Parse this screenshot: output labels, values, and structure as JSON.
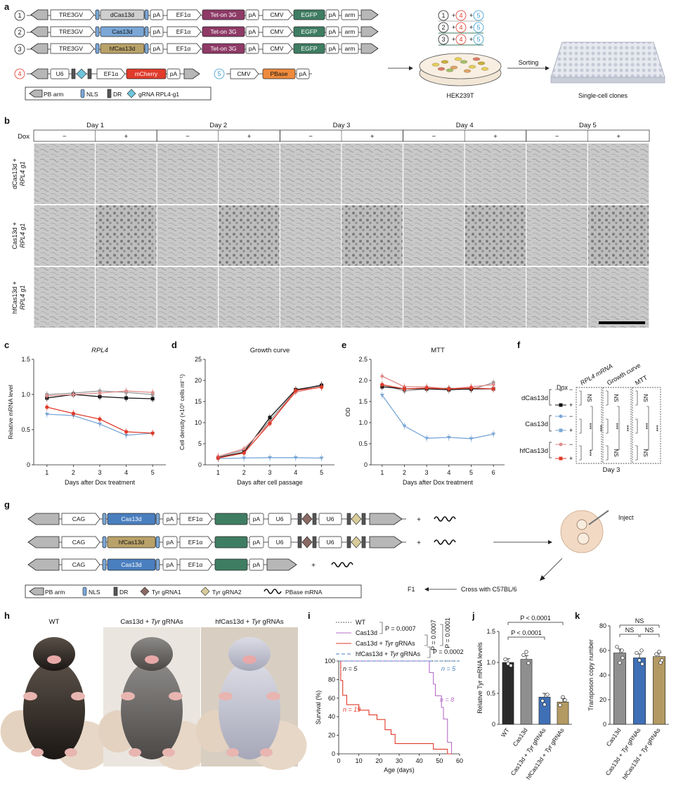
{
  "panels": [
    "a",
    "b",
    "c",
    "d",
    "e",
    "f",
    "g",
    "h",
    "i",
    "j",
    "k"
  ],
  "a": {
    "constructs": [
      {
        "num": "1",
        "elements": [
          "TRE3GV",
          "dCas13d",
          "pA",
          "EF1α",
          "Tet-on 3G",
          "pA",
          "CMV",
          "EGFP",
          "pA",
          "arm"
        ]
      },
      {
        "num": "2",
        "elements": [
          "TRE3GV",
          "Cas13d",
          "pA",
          "EF1α",
          "Tet-on 3G",
          "pA",
          "CMV",
          "EGFP",
          "pA",
          "arm"
        ]
      },
      {
        "num": "3",
        "elements": [
          "TRE3GV",
          "hfCas13d",
          "pA",
          "EF1α",
          "Tet-on 3G",
          "pA",
          "CMV",
          "EGFP",
          "pA",
          "arm"
        ]
      }
    ],
    "construct4": {
      "num": "4",
      "elements": [
        "U6",
        "EF1α",
        "mCherry",
        "pA"
      ]
    },
    "construct5": {
      "num": "5",
      "elements": [
        "CMV",
        "PBase",
        "pA"
      ]
    },
    "legend": [
      "PB arm",
      "NLS",
      "DR",
      "gRNA RPL4-g1"
    ],
    "combos": [
      [
        "1",
        "4",
        "5"
      ],
      [
        "2",
        "4",
        "5"
      ],
      [
        "3",
        "4",
        "5"
      ]
    ],
    "dish_label": "HEK239T",
    "sorting_label": "Sorting",
    "clones_label": "Single-cell clones"
  },
  "b": {
    "days": [
      "Day 1",
      "Day 2",
      "Day 3",
      "Day 4",
      "Day 5"
    ],
    "dox_label": "Dox",
    "minus": "−",
    "plus": "+",
    "rows": [
      "dCas13d + RPL4 g1",
      "Cas13d + RPL4 g1",
      "hfCas13d + RPL4 g1"
    ]
  },
  "c": {
    "chart_data": {
      "type": "line",
      "title": "RPL4",
      "xlabel": "Days after Dox treatment",
      "ylabel": "Relative mRNA level",
      "x": [
        1,
        2,
        3,
        4,
        5
      ],
      "ylim": [
        0,
        1.5
      ],
      "yticks": [
        "0",
        "0.5",
        "1.0",
        "1.5"
      ],
      "series": [
        {
          "color": "#9a9a9a",
          "values": [
            1.0,
            1.02,
            1.05,
            1.03,
            1.0
          ]
        },
        {
          "color": "#111111",
          "values": [
            0.95,
            1.0,
            0.97,
            0.95,
            0.94
          ]
        },
        {
          "color": "#7aa7d6",
          "values": [
            0.72,
            0.7,
            0.58,
            0.42,
            0.45
          ]
        },
        {
          "color": "#e08b8b",
          "values": [
            0.98,
            1.0,
            1.02,
            1.05,
            1.03
          ]
        },
        {
          "color": "#e03b2b",
          "values": [
            0.82,
            0.73,
            0.65,
            0.47,
            0.45
          ]
        }
      ]
    }
  },
  "d": {
    "chart_data": {
      "type": "line",
      "title": "Growth curve",
      "xlabel": "Days after cell passage",
      "ylabel": "Cell density (×10⁵ cells ml⁻¹)",
      "x": [
        1,
        2,
        3,
        4,
        5
      ],
      "ylim": [
        0,
        25
      ],
      "yticks": [
        "0",
        "5",
        "10",
        "15",
        "20",
        "25"
      ],
      "series": [
        {
          "color": "#9a9a9a",
          "values": [
            1.8,
            3.5,
            10.5,
            17.5,
            19.0
          ]
        },
        {
          "color": "#111111",
          "values": [
            1.7,
            3.0,
            11.2,
            17.8,
            18.8
          ]
        },
        {
          "color": "#7aa7d6",
          "values": [
            1.5,
            1.6,
            1.7,
            1.7,
            1.6
          ]
        },
        {
          "color": "#e08b8b",
          "values": [
            2.0,
            3.8,
            10.0,
            17.2,
            18.5
          ]
        },
        {
          "color": "#e03b2b",
          "values": [
            1.6,
            2.8,
            9.8,
            17.6,
            18.4
          ]
        }
      ]
    }
  },
  "e": {
    "chart_data": {
      "type": "line",
      "title": "MTT",
      "xlabel": "Days after Dox treatment",
      "ylabel": "OD",
      "x": [
        1,
        2,
        3,
        4,
        5,
        6
      ],
      "ylim": [
        0,
        2.5
      ],
      "yticks": [
        "0",
        "0.5",
        "1.0",
        "1.5",
        "2.0",
        "2.5"
      ],
      "series": [
        {
          "color": "#9a9a9a",
          "values": [
            1.9,
            1.75,
            1.8,
            1.82,
            1.78,
            1.95
          ]
        },
        {
          "color": "#111111",
          "values": [
            1.85,
            1.8,
            1.8,
            1.78,
            1.8,
            1.8
          ]
        },
        {
          "color": "#7aa7d6",
          "values": [
            1.65,
            0.92,
            0.63,
            0.65,
            0.62,
            0.73
          ]
        },
        {
          "color": "#e08b8b",
          "values": [
            2.1,
            1.85,
            1.85,
            1.8,
            1.85,
            1.9
          ]
        },
        {
          "color": "#e03b2b",
          "values": [
            1.9,
            1.8,
            1.82,
            1.8,
            1.82,
            1.8
          ]
        }
      ]
    }
  },
  "f": {
    "dox": "Dox",
    "cols": [
      "RPL4 mRNA",
      "Growth curve",
      "MTT"
    ],
    "groups": [
      "dCas13d",
      "Cas13d",
      "hfCas13d"
    ],
    "signs": [
      "−",
      "+",
      "−",
      "+",
      "−",
      "+"
    ],
    "stars": "***",
    "ns": "NS",
    "day": "Day 3"
  },
  "g": {
    "constructs": [
      {
        "elements": [
          "CAG",
          "Cas13d",
          "pA",
          "EF1α",
          "pA",
          "U6",
          "U6"
        ]
      },
      {
        "elements": [
          "CAG",
          "hfCas13d",
          "pA",
          "EF1α",
          "pA",
          "U6",
          "U6"
        ]
      },
      {
        "elements": [
          "CAG",
          "Cas13d",
          "pA",
          "EF1α",
          "pA"
        ]
      }
    ],
    "plus": "+",
    "legend": [
      "PB arm",
      "NLS",
      "DR",
      "Tyr gRNA1",
      "Tyr gRNA2",
      "PBase mRNA"
    ],
    "inject": "Inject",
    "f1": "F1",
    "cross": "Cross with C57BL/6"
  },
  "h": {
    "labels": [
      "WT",
      "Cas13d + Tyr gRNAs",
      "hfCas13d + Tyr gRNAs"
    ]
  },
  "i": {
    "chart_data": {
      "type": "line",
      "xlabel": "Age (days)",
      "ylabel": "Survival (%)",
      "xticks": [
        0,
        10,
        20,
        30,
        40,
        50,
        60
      ],
      "yticks": [
        0,
        20,
        40,
        60,
        80,
        100
      ],
      "xlim": [
        0,
        60
      ],
      "ylim": [
        0,
        100
      ],
      "legend": [
        "WT",
        "Cas13d",
        "Cas13d + Tyr gRNAs",
        "hfCas13d + Tyr gRNAs"
      ],
      "pvalues": [
        "P = 0.0007",
        "P = 0.0007",
        "P = 0.0001",
        "P = 0.0002"
      ],
      "n_labels": [
        "n = 5",
        "n = 5",
        "n = 8",
        "n = 19"
      ],
      "series": [
        {
          "color": "#333333",
          "x": [
            0,
            60
          ],
          "y": [
            100,
            100
          ]
        },
        {
          "color": "#b56cc7",
          "x": [
            0,
            44,
            45,
            47,
            48,
            51,
            52,
            54,
            56
          ],
          "y": [
            100,
            100,
            87.5,
            75,
            62.5,
            50,
            37.5,
            12.5,
            0
          ]
        },
        {
          "color": "#e03b2b",
          "x": [
            0,
            1,
            2,
            4,
            10,
            15,
            19,
            23,
            26,
            28,
            47,
            50,
            54
          ],
          "y": [
            100,
            79,
            63,
            53,
            47,
            42,
            37,
            26,
            21,
            11,
            5,
            5,
            0
          ]
        },
        {
          "color": "#4a7fbf",
          "x": [
            0,
            60
          ],
          "y": [
            100,
            100
          ]
        }
      ]
    }
  },
  "j": {
    "chart_data": {
      "type": "bar",
      "ylabel": "Relative Tyr mRNA levels",
      "categories": [
        "WT",
        "Cas13d",
        "Cas13d + Tyr gRNAs",
        "hfCas13d + Tyr gRNAs"
      ],
      "values": [
        1.0,
        1.05,
        0.44,
        0.36
      ],
      "colors": [
        "#2b2b2b",
        "#8f8f8f",
        "#3f6fb5",
        "#b39a63"
      ],
      "ylim": [
        0,
        1.5
      ],
      "yticks": [
        "0",
        "0.5",
        "1.0",
        "1.5"
      ],
      "pvalues": [
        "P < 0.0001",
        "P < 0.0001"
      ]
    }
  },
  "k": {
    "chart_data": {
      "type": "bar",
      "ylabel": "Transposon copy number",
      "categories": [
        "Cas13d",
        "Cas13d + Tyr gRNAs",
        "hfCas13d + Tyr gRNAs"
      ],
      "values": [
        58,
        54,
        55
      ],
      "colors": [
        "#8f8f8f",
        "#3f6fb5",
        "#b39a63"
      ],
      "ylim": [
        0,
        80
      ],
      "yticks": [
        "0",
        "20",
        "40",
        "60",
        "80"
      ],
      "sig": [
        "NS",
        "NS",
        "NS"
      ]
    }
  }
}
